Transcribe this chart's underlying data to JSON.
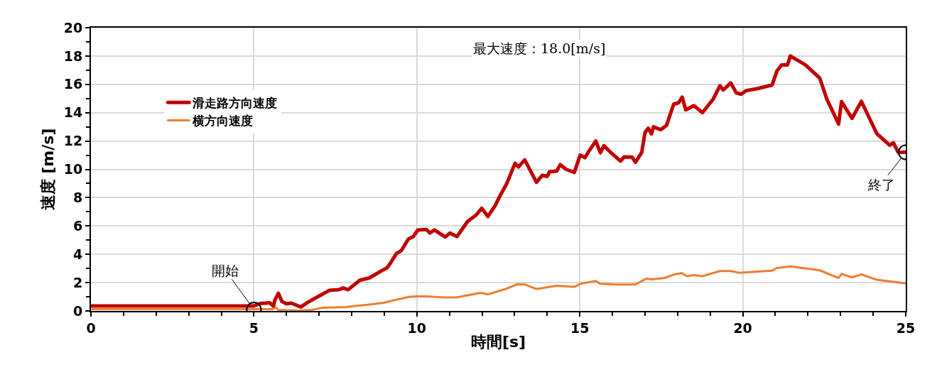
{
  "chart_data": {
    "type": "line",
    "xlabel": "時間[s]",
    "ylabel": "速度 [m/s]",
    "xlim": [
      0,
      25
    ],
    "xticks": [
      0,
      5,
      10,
      15,
      20,
      25
    ],
    "ylim": [
      0,
      20
    ],
    "yticks": [
      0,
      2,
      4,
      6,
      8,
      10,
      12,
      14,
      16,
      18,
      20
    ],
    "grid": true,
    "legend": "top left",
    "marker": "none",
    "line_style": "solid",
    "annotations": [
      "最大速度：18.0[m/s]",
      {
        "text": "開始",
        "x": 5,
        "y": 0.1
      },
      {
        "text": "終了",
        "x": 25,
        "y": 11.2
      }
    ],
    "series": [
      {
        "name": "滑走路方向速度",
        "color": "#c00000",
        "x": [
          0,
          1,
          2,
          3,
          4,
          5,
          5.2,
          5.49,
          5.6,
          5.64,
          5.75,
          5.86,
          6.0,
          6.15,
          6.44,
          6.66,
          7.02,
          7.31,
          7.6,
          7.74,
          7.89,
          8.25,
          8.54,
          8.91,
          9.09,
          9.2,
          9.38,
          9.52,
          9.74,
          9.89,
          10.03,
          10.29,
          10.4,
          10.54,
          10.87,
          11.01,
          11.23,
          11.56,
          11.81,
          11.99,
          12.18,
          12.4,
          12.54,
          12.76,
          13.01,
          13.12,
          13.31,
          13.67,
          13.85,
          14.0,
          14.07,
          14.29,
          14.4,
          14.58,
          14.83,
          15.01,
          15.16,
          15.27,
          15.49,
          15.63,
          15.74,
          16.0,
          16.25,
          16.36,
          16.6,
          16.71,
          16.9,
          17.0,
          17.1,
          17.2,
          17.26,
          17.48,
          17.66,
          17.88,
          18.03,
          18.14,
          18.25,
          18.5,
          18.76,
          19.09,
          19.3,
          19.4,
          19.63,
          19.8,
          19.95,
          20.1,
          20.46,
          20.9,
          21.05,
          21.19,
          21.37,
          21.46,
          21.92,
          22.36,
          22.58,
          22.94,
          23.03,
          23.35,
          23.64,
          24.11,
          24.51,
          24.62,
          24.77,
          24.99
        ],
        "values": [
          0.35,
          0.35,
          0.35,
          0.35,
          0.35,
          0.35,
          0.53,
          0.58,
          0.33,
          0.75,
          1.25,
          0.67,
          0.5,
          0.55,
          0.28,
          0.62,
          1.08,
          1.45,
          1.5,
          1.62,
          1.5,
          2.17,
          2.33,
          2.83,
          3.05,
          3.42,
          4.08,
          4.25,
          5.08,
          5.25,
          5.72,
          5.75,
          5.5,
          5.72,
          5.22,
          5.5,
          5.25,
          6.33,
          6.75,
          7.25,
          6.67,
          7.42,
          8.08,
          9.0,
          10.42,
          10.17,
          10.67,
          9.08,
          9.58,
          9.5,
          9.83,
          9.87,
          10.33,
          10.0,
          9.78,
          11.0,
          10.83,
          11.25,
          12.0,
          11.17,
          11.67,
          11.08,
          10.58,
          10.88,
          10.87,
          10.5,
          11.2,
          12.6,
          12.9,
          12.5,
          13.0,
          12.8,
          13.1,
          14.6,
          14.7,
          15.1,
          14.2,
          14.5,
          14.0,
          14.95,
          15.9,
          15.6,
          16.1,
          15.4,
          15.3,
          15.55,
          15.7,
          15.95,
          16.95,
          17.37,
          17.37,
          18.0,
          17.37,
          16.45,
          14.95,
          13.2,
          14.78,
          13.6,
          14.8,
          12.53,
          11.7,
          11.87,
          11.2,
          11.2
        ]
      },
      {
        "name": "横方向速度",
        "color": "#ed7d31",
        "x": [
          0,
          1,
          2,
          3,
          4,
          5,
          5.56,
          5.67,
          5.75,
          6.36,
          6.8,
          7.09,
          7.82,
          8.54,
          8.98,
          9.34,
          9.78,
          10.0,
          10.29,
          10.87,
          11.23,
          11.96,
          12.18,
          12.76,
          13.08,
          13.31,
          13.67,
          14.29,
          14.83,
          15.01,
          15.49,
          15.63,
          16.1,
          16.71,
          17.04,
          17.2,
          17.6,
          17.9,
          18.14,
          18.28,
          18.5,
          18.76,
          19.3,
          19.63,
          19.88,
          20.9,
          21.05,
          21.46,
          22.36,
          22.94,
          23.03,
          23.35,
          23.64,
          24.11,
          24.99
        ],
        "values": [
          0.12,
          0.12,
          0.12,
          0.12,
          0.12,
          0.12,
          0.12,
          0.25,
          0.08,
          0.03,
          0.08,
          0.22,
          0.28,
          0.45,
          0.58,
          0.78,
          1.0,
          1.03,
          1.03,
          0.95,
          0.97,
          1.28,
          1.17,
          1.58,
          1.88,
          1.87,
          1.55,
          1.78,
          1.7,
          1.92,
          2.12,
          1.92,
          1.87,
          1.87,
          2.28,
          2.23,
          2.33,
          2.58,
          2.67,
          2.45,
          2.53,
          2.45,
          2.82,
          2.82,
          2.7,
          2.85,
          3.03,
          3.15,
          2.87,
          2.32,
          2.62,
          2.37,
          2.58,
          2.2,
          1.95
        ]
      }
    ]
  }
}
